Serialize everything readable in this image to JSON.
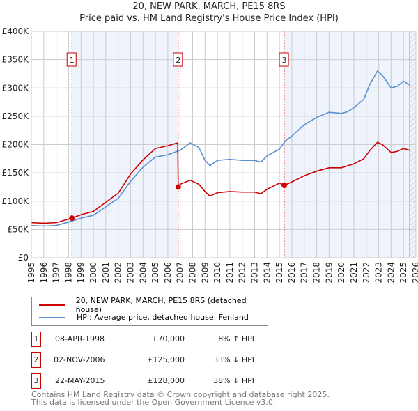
{
  "chart_data": {
    "type": "line",
    "title": "20, NEW PARK, MARCH, PE15 8RS",
    "subtitle": "Price paid vs. HM Land Registry's House Price Index (HPI)",
    "xlim": [
      1995,
      2026
    ],
    "ylim": [
      0,
      400000
    ],
    "xticks": [
      "1995",
      "1996",
      "1997",
      "1998",
      "1999",
      "2000",
      "2001",
      "2002",
      "2003",
      "2004",
      "2005",
      "2006",
      "2007",
      "2008",
      "2009",
      "2010",
      "2011",
      "2012",
      "2013",
      "2014",
      "2015",
      "2016",
      "2017",
      "2018",
      "2019",
      "2020",
      "2021",
      "2022",
      "2023",
      "2024",
      "2025",
      "2026"
    ],
    "yticks": [
      {
        "v": 0,
        "label": "£0"
      },
      {
        "v": 50000,
        "label": "£50K"
      },
      {
        "v": 100000,
        "label": "£100K"
      },
      {
        "v": 150000,
        "label": "£150K"
      },
      {
        "v": 200000,
        "label": "£200K"
      },
      {
        "v": 250000,
        "label": "£250K"
      },
      {
        "v": 300000,
        "label": "£300K"
      },
      {
        "v": 350000,
        "label": "£350K"
      },
      {
        "v": 400000,
        "label": "£400K"
      }
    ],
    "grid": true,
    "series": [
      {
        "name": "20, NEW PARK, MARCH, PE15 8RS (detached house)",
        "color": "#cc0000",
        "x": [
          1995,
          1996,
          1997,
          1998.27,
          1999,
          2000,
          2001,
          2002,
          2003,
          2004,
          2005,
          2006,
          2006.8,
          2006.84,
          2007,
          2007.8,
          2008.5,
          2009,
          2009.4,
          2010,
          2011,
          2012,
          2013,
          2013.5,
          2014,
          2015,
          2015.39,
          2016,
          2017,
          2018,
          2019,
          2020,
          2021,
          2021.8,
          2022.3,
          2022.9,
          2023.3,
          2023.7,
          2024,
          2024.5,
          2025,
          2025.5
        ],
        "y": [
          62000,
          61000,
          62000,
          70000,
          76000,
          82000,
          98000,
          114000,
          148000,
          173000,
          193000,
          198000,
          203000,
          125000,
          130000,
          137000,
          130000,
          117000,
          109000,
          115000,
          117000,
          116000,
          116000,
          113000,
          121000,
          132000,
          128000,
          134000,
          145000,
          153000,
          159000,
          159000,
          166000,
          175000,
          190000,
          204000,
          200000,
          192000,
          186000,
          188000,
          193000,
          190000
        ]
      },
      {
        "name": "HPI: Average price, detached house, Fenland",
        "color": "#5b8fd0",
        "x": [
          1995,
          1996,
          1997,
          1998,
          1999,
          2000,
          2001,
          2002,
          2003,
          2004,
          2005,
          2006,
          2007,
          2007.8,
          2008.5,
          2009,
          2009.4,
          2010,
          2011,
          2012,
          2013,
          2013.5,
          2014,
          2015,
          2015.5,
          2016,
          2017,
          2018,
          2019,
          2020,
          2020.5,
          2021,
          2021.8,
          2022.3,
          2022.9,
          2023.3,
          2023.7,
          2024,
          2024.5,
          2025,
          2025.5
        ],
        "y": [
          57000,
          56000,
          57000,
          63000,
          70000,
          75000,
          90000,
          105000,
          135000,
          160000,
          178000,
          182000,
          190000,
          203000,
          195000,
          172000,
          163000,
          172000,
          174000,
          172000,
          172000,
          169000,
          180000,
          192000,
          207000,
          215000,
          235000,
          248000,
          257000,
          255000,
          258000,
          265000,
          280000,
          307000,
          330000,
          322000,
          310000,
          300000,
          303000,
          312000,
          305000
        ]
      }
    ],
    "sales": [
      {
        "label": "1",
        "x": 2006.84,
        "xd": 1998.27,
        "y": 70000
      },
      {
        "label": "2",
        "xd": 2006.84,
        "y": 125000
      },
      {
        "label": "3",
        "xd": 2015.39,
        "y": 128000
      }
    ],
    "legend": "below"
  },
  "legend": {
    "property": "20, NEW PARK, MARCH, PE15 8RS (detached house)",
    "hpi": "HPI: Average price, detached house, Fenland"
  },
  "transactions": [
    {
      "num": "1",
      "date": "08-APR-1998",
      "price": "£70,000",
      "hpi": "8% ↑ HPI"
    },
    {
      "num": "2",
      "date": "02-NOV-2006",
      "price": "£125,000",
      "hpi": "33% ↓ HPI"
    },
    {
      "num": "3",
      "date": "22-MAY-2015",
      "price": "£128,000",
      "hpi": "38% ↓ HPI"
    }
  ],
  "footer": [
    "Contains HM Land Registry data © Crown copyright and database right 2025.",
    "This data is licensed under the Open Government Licence v3.0."
  ]
}
